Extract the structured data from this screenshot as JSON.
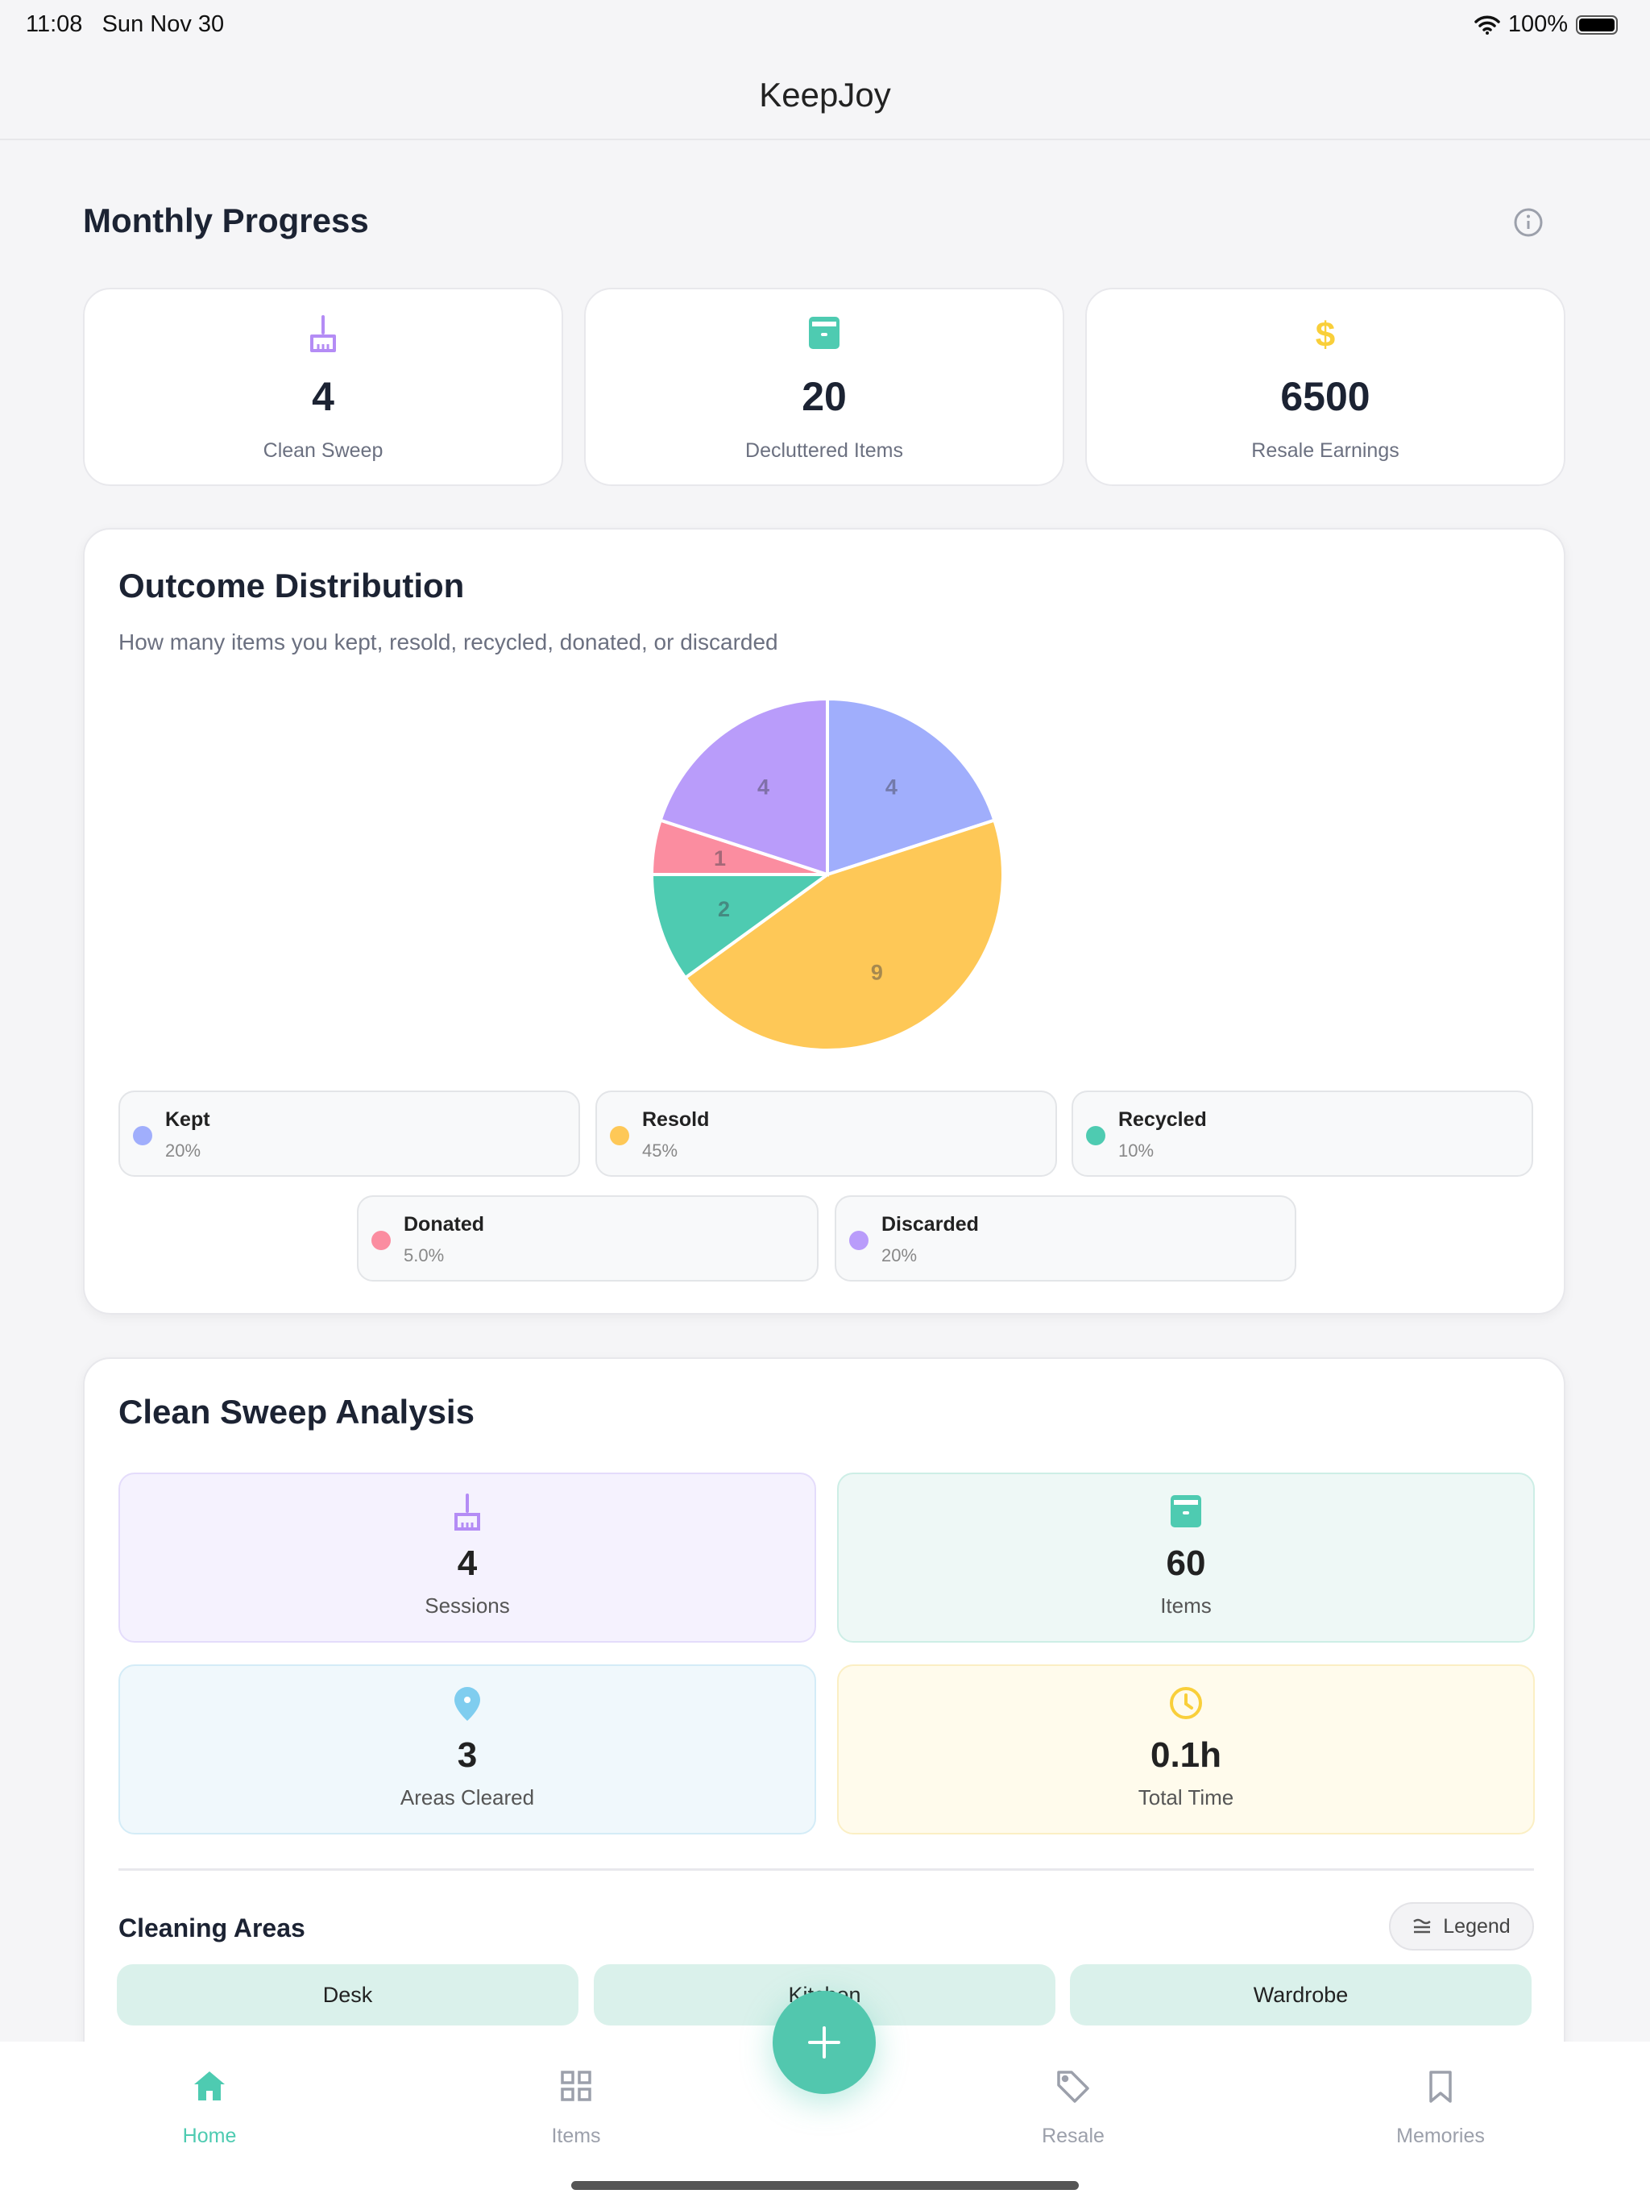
{
  "status": {
    "time": "11:08",
    "date": "Sun Nov 30",
    "battery": "100%"
  },
  "app_title": "KeepJoy",
  "monthly": {
    "title": "Monthly Progress",
    "stats": [
      {
        "value": "4",
        "label": "Clean Sweep",
        "icon": "broom-icon",
        "color": "#b48cf5"
      },
      {
        "value": "20",
        "label": "Decluttered Items",
        "icon": "archive-icon",
        "color": "#4ecbb1"
      },
      {
        "value": "6500",
        "label": "Resale Earnings",
        "icon": "dollar-icon",
        "color": "#f9cf3a"
      }
    ]
  },
  "outcome": {
    "title": "Outcome Distribution",
    "subtitle": "How many items you kept, resold, recycled, donated, or discarded",
    "legend": [
      {
        "name": "Kept",
        "pct": "20%",
        "color": "#a0aefc"
      },
      {
        "name": "Resold",
        "pct": "45%",
        "color": "#fec857"
      },
      {
        "name": "Recycled",
        "pct": "10%",
        "color": "#4ecbb1"
      },
      {
        "name": "Donated",
        "pct": "5.0%",
        "color": "#fb8da0"
      },
      {
        "name": "Discarded",
        "pct": "20%",
        "color": "#b99cfa"
      }
    ]
  },
  "chart_data": {
    "type": "pie",
    "categories": [
      "Kept",
      "Resold",
      "Recycled",
      "Donated",
      "Discarded"
    ],
    "values": [
      4,
      9,
      2,
      1,
      4
    ],
    "colors": [
      "#a0aefc",
      "#fec857",
      "#4ecbb1",
      "#fb8da0",
      "#b99cfa"
    ]
  },
  "sweep": {
    "title": "Clean Sweep Analysis",
    "tiles": [
      {
        "value": "4",
        "label": "Sessions",
        "icon": "broom-icon"
      },
      {
        "value": "60",
        "label": "Items",
        "icon": "archive-icon"
      },
      {
        "value": "3",
        "label": "Areas Cleared",
        "icon": "map-pin-icon"
      },
      {
        "value": "0.1h",
        "label": "Total Time",
        "icon": "clock-icon"
      }
    ],
    "areas_title": "Cleaning Areas",
    "legend_button": "Legend",
    "areas": [
      "Desk",
      "Kitchen",
      "Wardrobe"
    ]
  },
  "tabs": [
    {
      "label": "Home",
      "active": true
    },
    {
      "label": "Items"
    },
    {
      "label": "Resale"
    },
    {
      "label": "Memories"
    }
  ],
  "accent": "#4ecbb1"
}
